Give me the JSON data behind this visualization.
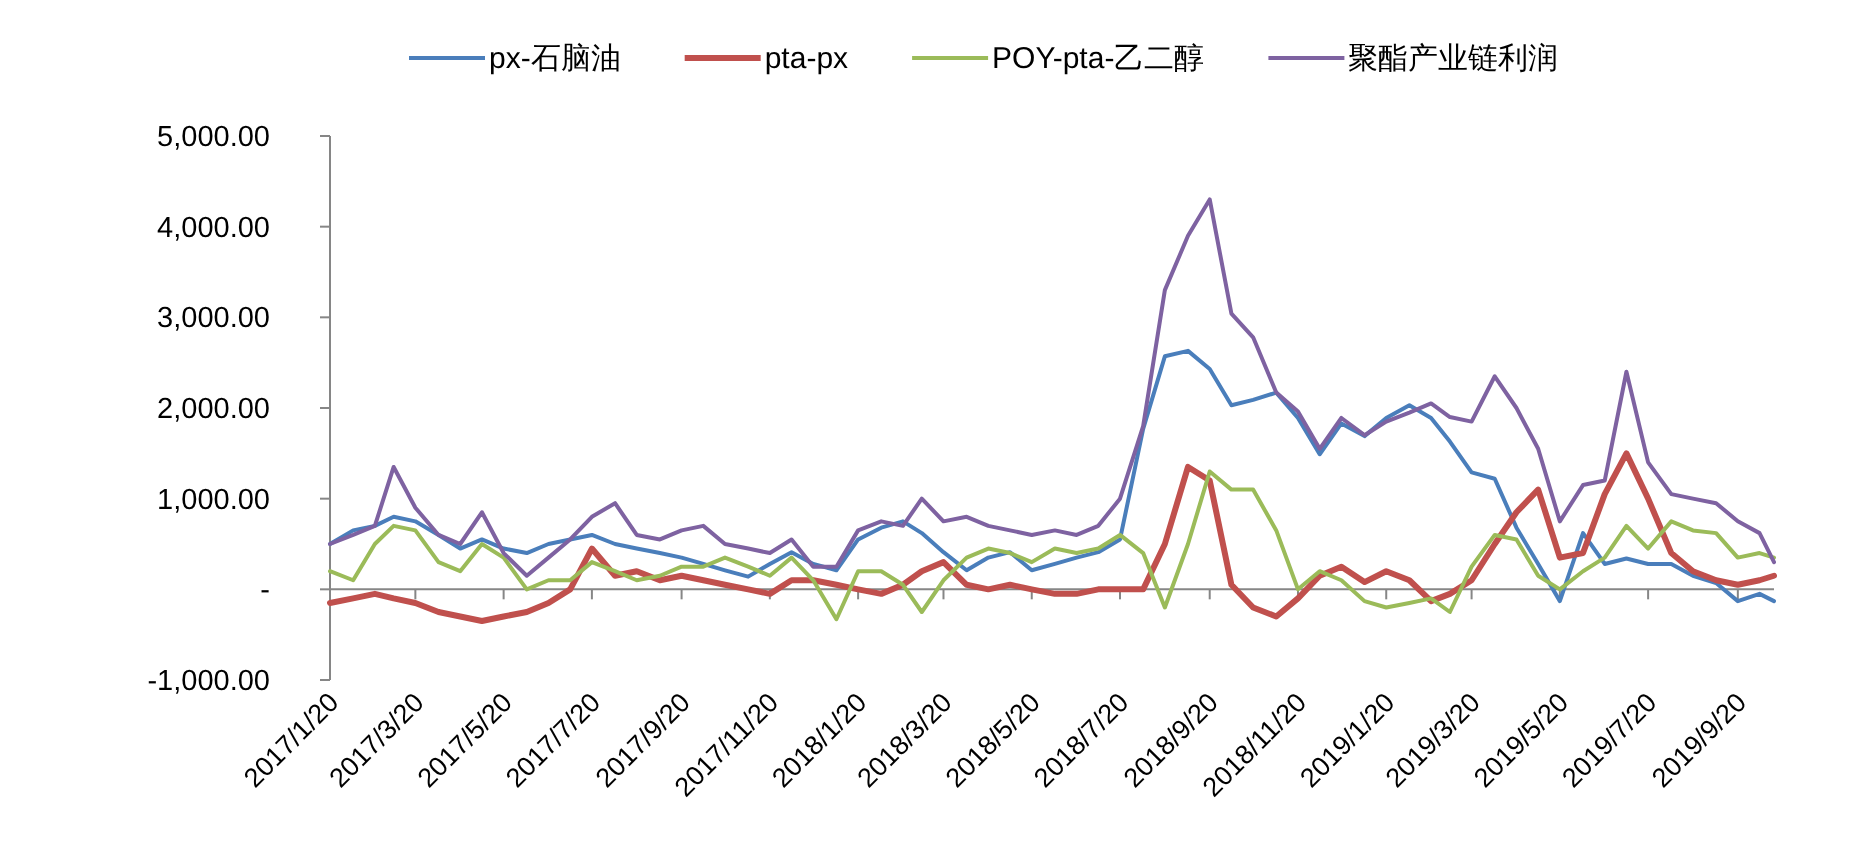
{
  "chart_data": {
    "type": "line",
    "legend": "top",
    "marker": "none",
    "line_style": "solid",
    "x": [
      "2017-01-20",
      "2017-02-05",
      "2017-02-20",
      "2017-03-05",
      "2017-03-20",
      "2017-04-05",
      "2017-04-20",
      "2017-05-05",
      "2017-05-20",
      "2017-06-05",
      "2017-06-20",
      "2017-07-05",
      "2017-07-20",
      "2017-08-05",
      "2017-08-20",
      "2017-09-05",
      "2017-09-20",
      "2017-10-05",
      "2017-10-20",
      "2017-11-05",
      "2017-11-20",
      "2017-12-05",
      "2017-12-20",
      "2018-01-05",
      "2018-01-20",
      "2018-02-05",
      "2018-02-20",
      "2018-03-05",
      "2018-03-20",
      "2018-04-05",
      "2018-04-20",
      "2018-05-05",
      "2018-05-20",
      "2018-06-05",
      "2018-06-20",
      "2018-07-05",
      "2018-07-20",
      "2018-08-05",
      "2018-08-20",
      "2018-09-05",
      "2018-09-20",
      "2018-10-05",
      "2018-10-20",
      "2018-11-05",
      "2018-11-20",
      "2018-12-05",
      "2018-12-20",
      "2019-01-05",
      "2019-01-20",
      "2019-02-05",
      "2019-02-20",
      "2019-03-05",
      "2019-03-20",
      "2019-04-05",
      "2019-04-20",
      "2019-05-05",
      "2019-05-20",
      "2019-06-05",
      "2019-06-20",
      "2019-07-05",
      "2019-07-20",
      "2019-08-05",
      "2019-08-20",
      "2019-09-05",
      "2019-09-20",
      "2019-10-05",
      "2019-10-15"
    ],
    "series": [
      {
        "name": "px-石脑油",
        "color": "#4a7ebb",
        "values": [
          500,
          650,
          700,
          800,
          750,
          600,
          450,
          550,
          450,
          400,
          500,
          550,
          600,
          500,
          450,
          400,
          350,
          280,
          210,
          140,
          280,
          410,
          280,
          210,
          550,
          680,
          750,
          620,
          410,
          210,
          350,
          410,
          210,
          280,
          350,
          410,
          550,
          1770,
          2570,
          2630,
          2430,
          2030,
          2090,
          2170,
          1890,
          1490,
          1830,
          1690,
          1890,
          2030,
          1890,
          1630,
          1290,
          1220,
          680,
          280,
          -130,
          620,
          280,
          340,
          280,
          280,
          150,
          70,
          -130,
          -50,
          -130
        ]
      },
      {
        "name": "pta-px",
        "color": "#c0504d",
        "values": [
          -150,
          -100,
          -50,
          -100,
          -150,
          -250,
          -300,
          -350,
          -300,
          -250,
          -150,
          0,
          450,
          150,
          200,
          100,
          150,
          100,
          50,
          0,
          -50,
          100,
          100,
          50,
          0,
          -50,
          50,
          200,
          300,
          50,
          0,
          50,
          0,
          -50,
          -50,
          0,
          0,
          0,
          500,
          1350,
          1200,
          50,
          -200,
          -300,
          -100,
          150,
          250,
          80,
          200,
          100,
          -130,
          -50,
          100,
          500,
          850,
          1100,
          350,
          400,
          1050,
          1500,
          1000,
          400,
          200,
          100,
          50,
          100,
          150
        ]
      },
      {
        "name": "POY-pta-乙二醇",
        "color": "#9bbb59",
        "values": [
          200,
          100,
          500,
          700,
          650,
          300,
          200,
          500,
          350,
          0,
          100,
          100,
          300,
          200,
          100,
          150,
          250,
          250,
          350,
          250,
          150,
          350,
          100,
          -330,
          200,
          200,
          50,
          -250,
          100,
          350,
          450,
          400,
          300,
          450,
          400,
          450,
          600,
          400,
          -200,
          500,
          1300,
          1100,
          1100,
          650,
          0,
          200,
          100,
          -130,
          -200,
          -150,
          -100,
          -250,
          250,
          600,
          550,
          150,
          0,
          200,
          350,
          700,
          450,
          750,
          650,
          620,
          350,
          400,
          350
        ]
      },
      {
        "name": "聚酯产业链利润",
        "color": "#7e62a1",
        "values": [
          500,
          600,
          700,
          1350,
          900,
          600,
          500,
          850,
          400,
          150,
          350,
          550,
          800,
          950,
          600,
          550,
          650,
          700,
          500,
          450,
          400,
          550,
          250,
          250,
          650,
          750,
          700,
          1000,
          750,
          800,
          700,
          650,
          600,
          650,
          600,
          700,
          1000,
          1800,
          3300,
          3900,
          4300,
          3040,
          2780,
          2170,
          1960,
          1550,
          1890,
          1700,
          1850,
          1950,
          2050,
          1900,
          1850,
          2350,
          2000,
          1550,
          750,
          1150,
          1200,
          2400,
          1400,
          1050,
          1000,
          950,
          750,
          620,
          300
        ]
      }
    ],
    "xlim": [
      "2017-01-20",
      "2019-10-15"
    ],
    "xticks": [
      {
        "value": "2017-01-20",
        "label": "2017/1/20"
      },
      {
        "value": "2017-03-20",
        "label": "2017/3/20"
      },
      {
        "value": "2017-05-20",
        "label": "2017/5/20"
      },
      {
        "value": "2017-07-20",
        "label": "2017/7/20"
      },
      {
        "value": "2017-09-20",
        "label": "2017/9/20"
      },
      {
        "value": "2017-11-20",
        "label": "2017/11/20"
      },
      {
        "value": "2018-01-20",
        "label": "2018/1/20"
      },
      {
        "value": "2018-03-20",
        "label": "2018/3/20"
      },
      {
        "value": "2018-05-20",
        "label": "2018/5/20"
      },
      {
        "value": "2018-07-20",
        "label": "2018/7/20"
      },
      {
        "value": "2018-09-20",
        "label": "2018/9/20"
      },
      {
        "value": "2018-11-20",
        "label": "2018/11/20"
      },
      {
        "value": "2019-01-20",
        "label": "2019/1/20"
      },
      {
        "value": "2019-03-20",
        "label": "2019/3/20"
      },
      {
        "value": "2019-05-20",
        "label": "2019/5/20"
      },
      {
        "value": "2019-07-20",
        "label": "2019/7/20"
      },
      {
        "value": "2019-09-20",
        "label": "2019/9/20"
      }
    ],
    "ylim": [
      -1000,
      5000
    ],
    "yticks": [
      {
        "value": 5000,
        "label": "5,000.00"
      },
      {
        "value": 4000,
        "label": "4,000.00"
      },
      {
        "value": 3000,
        "label": "3,000.00"
      },
      {
        "value": 2000,
        "label": "2,000.00"
      },
      {
        "value": 1000,
        "label": "1,000.00"
      },
      {
        "value": 0,
        "label": "-"
      },
      {
        "value": -1000,
        "label": "-1,000.00"
      }
    ]
  }
}
